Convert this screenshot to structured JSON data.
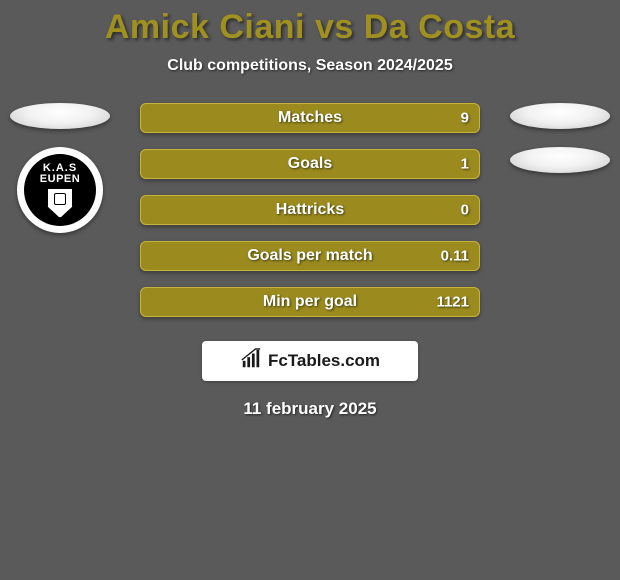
{
  "background_color": "#5a5a5a",
  "title": {
    "player1": "Amick Ciani",
    "vs": "vs",
    "player2": "Da Costa",
    "color": "#a09020",
    "fontsize": 34
  },
  "subtitle": {
    "text": "Club competitions, Season 2024/2025",
    "color": "#ffffff",
    "fontsize": 16
  },
  "left_player": {
    "club_badge": {
      "line1": "K.A.S",
      "line2": "EUPEN",
      "bg": "#000000",
      "fg": "#ffffff"
    }
  },
  "rows": {
    "bar_bg": "#9b8b1f",
    "bar_border": "#c7b53a",
    "label_color": "#ffffff",
    "value_color": "#ffffff",
    "items": [
      {
        "label": "Matches",
        "left": "",
        "right": "9"
      },
      {
        "label": "Goals",
        "left": "",
        "right": "1"
      },
      {
        "label": "Hattricks",
        "left": "",
        "right": "0"
      },
      {
        "label": "Goals per match",
        "left": "",
        "right": "0.11"
      },
      {
        "label": "Min per goal",
        "left": "",
        "right": "1121"
      }
    ]
  },
  "brand": {
    "text": "FcTables.com",
    "icon": "bar-chart-icon",
    "bg": "#ffffff",
    "fg": "#1a1a1a"
  },
  "footer_date": "11 february 2025"
}
